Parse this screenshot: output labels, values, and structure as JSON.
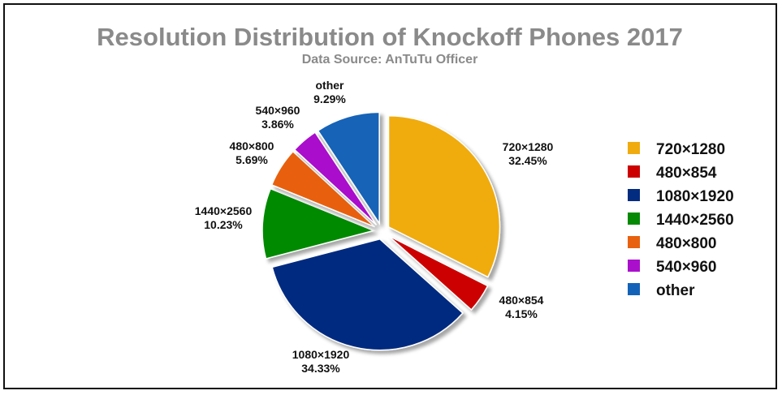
{
  "chart_data": {
    "type": "pie",
    "title": "Resolution Distribution of Knockoff Phones 2017",
    "subtitle": "Data Source: AnTuTu Officer",
    "legend_position": "right",
    "slices": [
      {
        "label": "720×1280",
        "value": 32.45,
        "value_label": "32.45%",
        "color": "#f0ab0f"
      },
      {
        "label": "480×854",
        "value": 4.15,
        "value_label": "4.15%",
        "color": "#cc0000"
      },
      {
        "label": "1080×1920",
        "value": 34.33,
        "value_label": "34.33%",
        "color": "#022c80"
      },
      {
        "label": "1440×2560",
        "value": 10.23,
        "value_label": "10.23%",
        "color": "#068a06"
      },
      {
        "label": "480×800",
        "value": 5.69,
        "value_label": "5.69%",
        "color": "#e8610f"
      },
      {
        "label": "540×960",
        "value": 3.86,
        "value_label": "3.86%",
        "color": "#aa10cc"
      },
      {
        "label": "other",
        "value": 9.29,
        "value_label": "9.29%",
        "color": "#1263b8"
      }
    ]
  }
}
